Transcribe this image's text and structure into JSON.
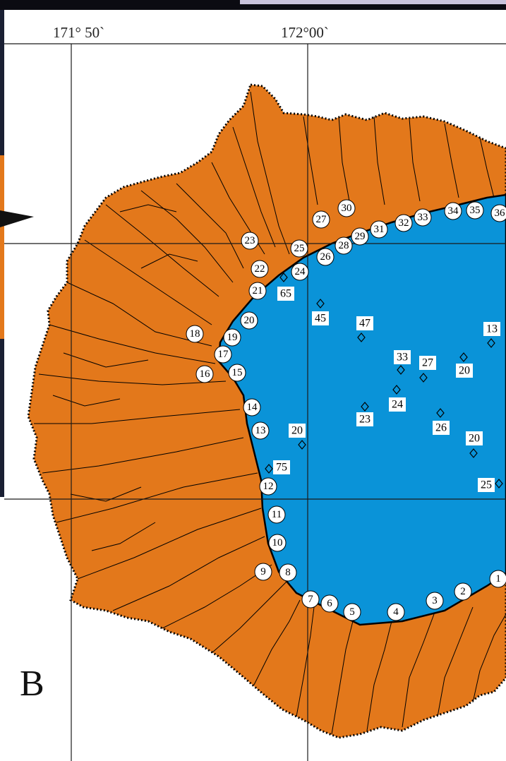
{
  "colors": {
    "land": "#E3781B",
    "lake": "#0A93D8",
    "frame_top": "#0b0b12",
    "frame_accent": "#c9c3dc",
    "grid": "#1a1a1a"
  },
  "map": {
    "panel_label": "B",
    "longitude_labels": [
      "171° 50`",
      "172°00`"
    ],
    "shore_points": [
      "1",
      "2",
      "3",
      "4",
      "5",
      "6",
      "7",
      "8",
      "9",
      "10",
      "11",
      "12",
      "13",
      "14",
      "15",
      "16",
      "17",
      "18",
      "19",
      "20",
      "21",
      "22",
      "23",
      "24",
      "25",
      "26",
      "27",
      "28",
      "29",
      "30",
      "31",
      "32",
      "33",
      "34",
      "35",
      "36"
    ],
    "depth_values": [
      "65",
      "45",
      "47",
      "13",
      "33",
      "27",
      "20",
      "24",
      "23",
      "26",
      "20",
      "20",
      "75",
      "25"
    ]
  }
}
